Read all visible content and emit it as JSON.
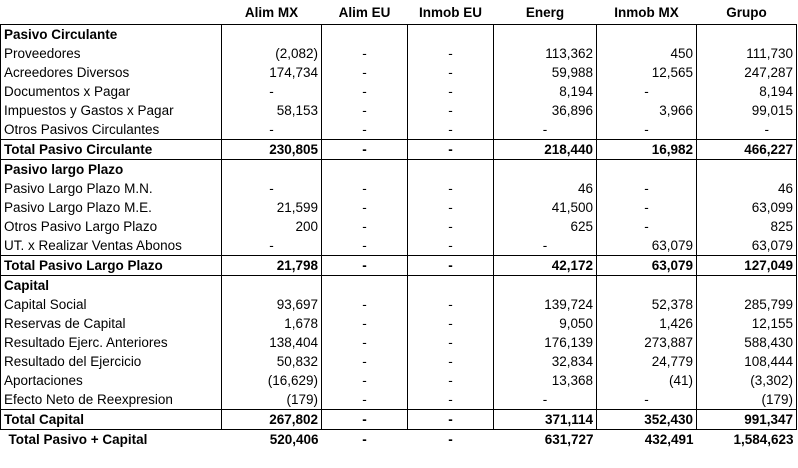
{
  "headers": [
    "",
    "Alim MX",
    "Alim EU",
    "Inmob EU",
    "Energ",
    "Inmob MX",
    "Grupo"
  ],
  "rows": [
    {
      "type": "section",
      "label": "Pasivo Circulante",
      "cells": [
        "",
        "",
        "",
        "",
        "",
        ""
      ]
    },
    {
      "type": "data",
      "label": "Proveedores",
      "cells": [
        "(2,082)",
        "-",
        "-",
        "113,362",
        "450",
        "111,730"
      ]
    },
    {
      "type": "data",
      "label": "Acreedores Diversos",
      "cells": [
        "174,734",
        "-",
        "-",
        "59,988",
        "12,565",
        "247,287"
      ]
    },
    {
      "type": "data",
      "label": "Documentos x Pagar",
      "cells": [
        "-",
        "-",
        "-",
        "8,194",
        "-",
        "8,194"
      ]
    },
    {
      "type": "data",
      "label": "Impuestos y Gastos x Pagar",
      "cells": [
        "58,153",
        "-",
        "-",
        "36,896",
        "3,966",
        "99,015"
      ]
    },
    {
      "type": "data",
      "label": "Otros Pasivos Circulantes",
      "cells": [
        "-",
        "-",
        "-",
        "-",
        "-",
        "-"
      ]
    },
    {
      "type": "total",
      "label": "Total Pasivo Circulante",
      "cells": [
        "230,805",
        "-",
        "-",
        "218,440",
        "16,982",
        "466,227"
      ]
    },
    {
      "type": "section",
      "label": "Pasivo largo Plazo",
      "cells": [
        "",
        "",
        "",
        "",
        "",
        ""
      ]
    },
    {
      "type": "data",
      "label": "Pasivo Largo Plazo M.N.",
      "cells": [
        "-",
        "-",
        "-",
        "46",
        "-",
        "46"
      ]
    },
    {
      "type": "data",
      "label": "Pasivo Largo Plazo M.E.",
      "cells": [
        "21,599",
        "-",
        "-",
        "41,500",
        "-",
        "63,099"
      ]
    },
    {
      "type": "data",
      "label": "Otros Pasivo Largo Plazo",
      "cells": [
        "200",
        "-",
        "-",
        "625",
        "-",
        "825"
      ]
    },
    {
      "type": "data",
      "label": "UT. x Realizar Ventas Abonos",
      "cells": [
        "-",
        "-",
        "-",
        "-",
        "63,079",
        "63,079"
      ]
    },
    {
      "type": "total",
      "label": "Total Pasivo Largo Plazo",
      "cells": [
        "21,798",
        "-",
        "-",
        "42,172",
        "63,079",
        "127,049"
      ]
    },
    {
      "type": "section",
      "label": "Capital",
      "cells": [
        "",
        "",
        "",
        "",
        "",
        ""
      ]
    },
    {
      "type": "data",
      "label": "Capital Social",
      "cells": [
        "93,697",
        "-",
        "-",
        "139,724",
        "52,378",
        "285,799"
      ]
    },
    {
      "type": "data",
      "label": "Reservas de Capital",
      "cells": [
        "1,678",
        "-",
        "-",
        "9,050",
        "1,426",
        "12,155"
      ]
    },
    {
      "type": "data",
      "label": "Resultado Ejerc. Anteriores",
      "cells": [
        "138,404",
        "-",
        "-",
        "176,139",
        "273,887",
        "588,430"
      ]
    },
    {
      "type": "data",
      "label": "Resultado del Ejercicio",
      "cells": [
        "50,832",
        "-",
        "-",
        "32,834",
        "24,779",
        "108,444"
      ]
    },
    {
      "type": "data",
      "label": "Aportaciones",
      "cells": [
        "(16,629)",
        "-",
        "-",
        "13,368",
        "(41)",
        "(3,302)"
      ]
    },
    {
      "type": "data",
      "label": "Efecto Neto de Reexpresion",
      "cells": [
        "(179)",
        "-",
        "-",
        "-",
        "-",
        "(179)"
      ]
    },
    {
      "type": "total",
      "label": "Total Capital",
      "cells": [
        "267,802",
        "-",
        "-",
        "371,114",
        "352,430",
        "991,347"
      ]
    },
    {
      "type": "grand",
      "label": "Total Pasivo + Capital",
      "cells": [
        "520,406",
        "-",
        "-",
        "631,727",
        "432,491",
        "1,584,623"
      ]
    }
  ]
}
